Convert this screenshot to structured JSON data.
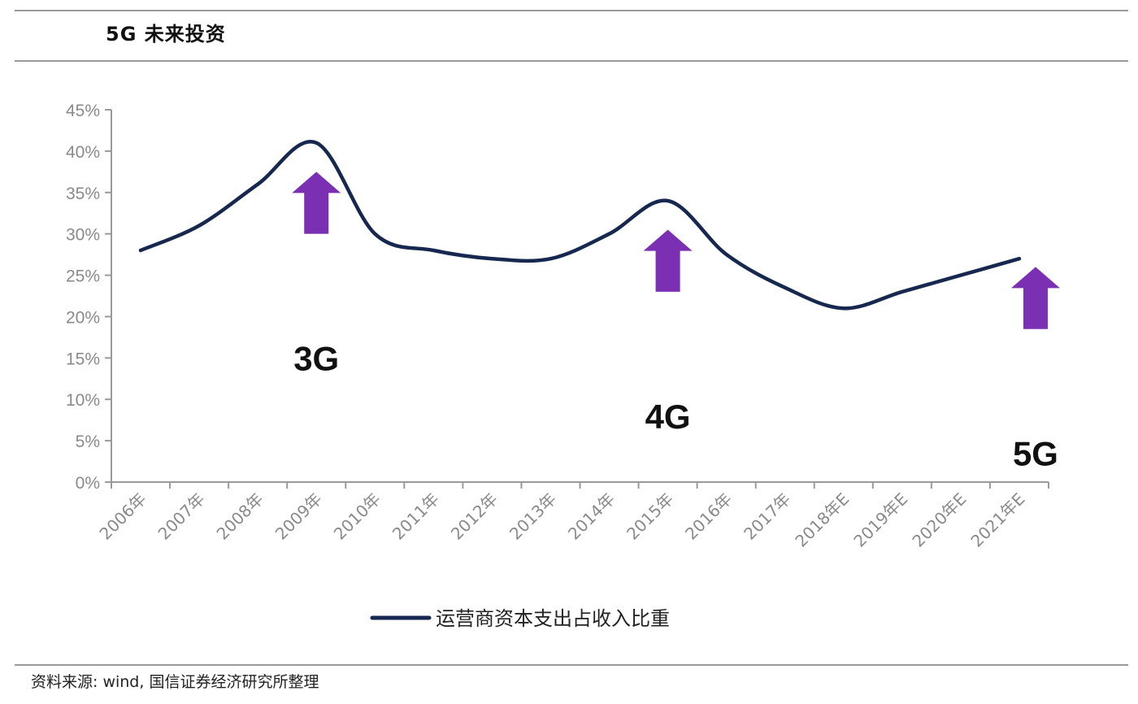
{
  "title": "5G 未来投资",
  "source": "资料来源: wind, 国信证券经济研究所整理",
  "chart_data": {
    "type": "line",
    "categories": [
      "2006年",
      "2007年",
      "2008年",
      "2009年",
      "2010年",
      "2011年",
      "2012年",
      "2013年",
      "2014年",
      "2015年",
      "2016年",
      "2017年",
      "2018年E",
      "2019年E",
      "2020年E",
      "2021年E"
    ],
    "series": [
      {
        "name": "运营商资本支出占收入比重",
        "values": [
          28,
          31,
          36,
          41,
          30,
          28,
          27,
          27,
          30,
          34,
          27.5,
          23.5,
          21,
          23,
          25,
          27
        ],
        "color": "#16284f"
      }
    ],
    "y_ticks": [
      "0%",
      "5%",
      "10%",
      "15%",
      "20%",
      "25%",
      "30%",
      "35%",
      "40%",
      "45%"
    ],
    "ylim": [
      0,
      45
    ],
    "legend_position": "bottom",
    "annotations": [
      {
        "label": "3G",
        "category": "2009年",
        "arrow_from": 30,
        "arrow_to": 37.5
      },
      {
        "label": "4G",
        "category": "2015年",
        "arrow_from": 23,
        "arrow_to": 30.5
      },
      {
        "label": "5G",
        "category": "2021年E",
        "arrow_from": 18.5,
        "arrow_to": 26
      }
    ],
    "arrow_color": "#7b2fb3"
  }
}
